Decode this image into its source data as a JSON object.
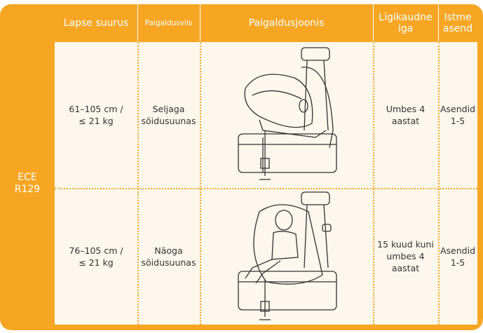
{
  "table": {
    "stub": "ECE\nR129",
    "header": [
      "Lapse suurus",
      "Paigaldusviis",
      "Paigaldusjoonis",
      "Ligikaudne\niga",
      "Istme\nasend"
    ],
    "rows": [
      [
        "61–105 cm /\n≤ 21 kg",
        "Seljaga\nsõidusuunas",
        "15 kuud kuni\numbes 4\naastat"
      ],
      [
        "76–105 cm /\n≤ 21 kg",
        "Näoga\nsõidusuunas",
        "15 kuud kuni\numbes 4\naastat"
      ]
    ],
    "age": [
      "Umbes 4\naastat",
      "15 kuud kuni\numbes 4\naastat"
    ],
    "position": [
      "Asendid\n1-5",
      "Asendid\n1-5"
    ]
  }
}
